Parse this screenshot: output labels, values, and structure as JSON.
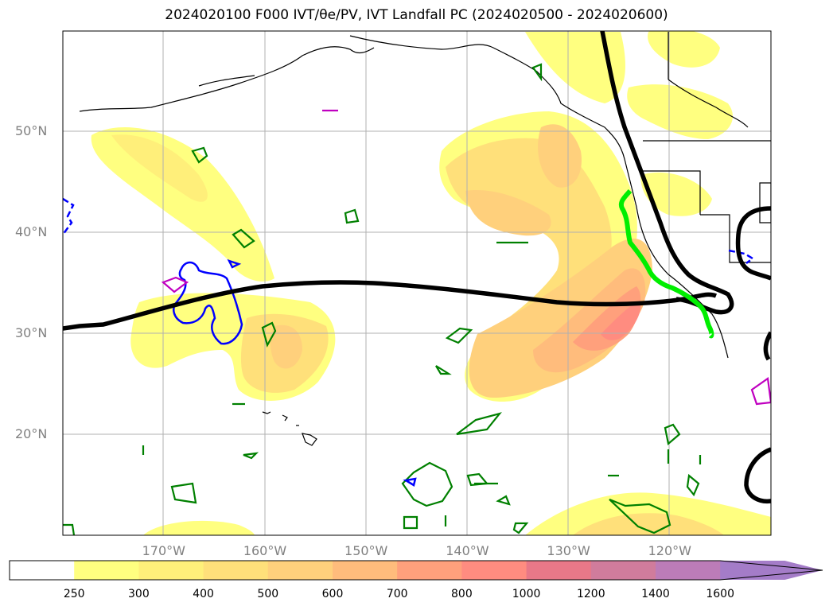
{
  "title": "2024020100 F000 IVT/θe/PV, IVT Landfall PC (2024020500 - 2024020600)",
  "map": {
    "lat_labels": [
      {
        "label": "50°N",
        "lat": 50
      },
      {
        "label": "40°N",
        "lat": 40
      },
      {
        "label": "30°N",
        "lat": 30
      },
      {
        "label": "20°N",
        "lat": 20
      }
    ],
    "lon_labels": [
      {
        "label": "170°W",
        "lon": -170
      },
      {
        "label": "160°W",
        "lon": -160
      },
      {
        "label": "150°W",
        "lon": -150
      },
      {
        "label": "140°W",
        "lon": -140
      },
      {
        "label": "130°W",
        "lon": -130
      },
      {
        "label": "120°W",
        "lon": -120
      }
    ],
    "colors": {
      "theta_e_contour": "#000000",
      "landfall_pc": "#00ee00",
      "pv_green": "#008000",
      "pv_blue": "#0000ff",
      "pv_magenta": "#c000c0",
      "coastline": "#000000"
    }
  },
  "colorbar": {
    "levels": [
      "250",
      "300",
      "400",
      "500",
      "600",
      "700",
      "800",
      "1000",
      "1200",
      "1400",
      "1600"
    ],
    "colors": [
      "#ffff80",
      "#fff07a",
      "#ffe07a",
      "#ffd07c",
      "#ffbc7c",
      "#ffa07c",
      "#ff8c80",
      "#e87888",
      "#d07c9c",
      "#bc7cb8",
      "#a47cc8"
    ]
  }
}
